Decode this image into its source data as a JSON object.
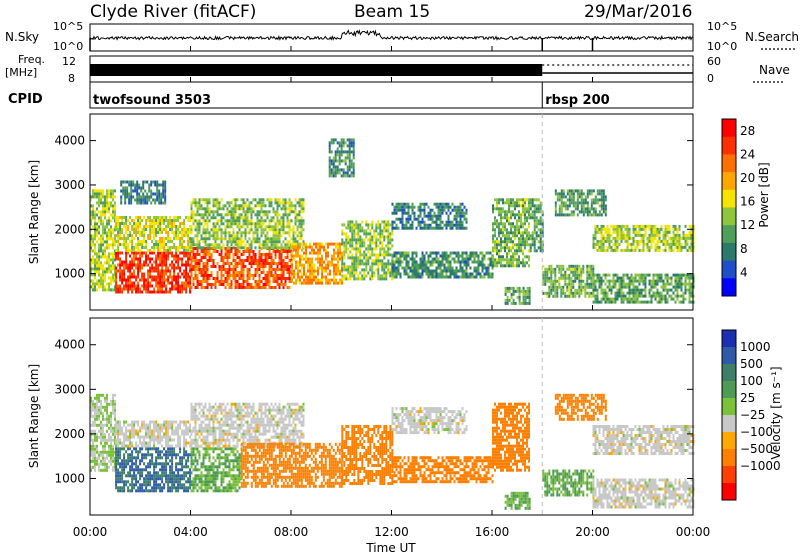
{
  "header": {
    "station": "Clyde River (fitACF)",
    "beam": "Beam 15",
    "date": "29/Mar/2016"
  },
  "strip_labels": {
    "nsky": "N.Sky",
    "freq_line1": "Freq.",
    "freq_line2": "[MHz]",
    "cpid": "CPID",
    "nsearch": "N.Search",
    "nave": "Nave",
    "nsky_tick_hi": "10^5",
    "nsky_tick_lo": "10^0",
    "nsearch_tick_hi": "10^5",
    "nsearch_tick_lo": "10^0",
    "freq_tick_hi": "12",
    "freq_tick_lo": "8",
    "nave_tick_hi": "60",
    "nave_tick_lo": "0"
  },
  "colors": {
    "power_scale": [
      "#0000ff",
      "#1f4fc8",
      "#2c7a6a",
      "#4f9e5b",
      "#8fc43d",
      "#f5e400",
      "#ffa500",
      "#ff7000",
      "#ff3000",
      "#ff0000"
    ],
    "velocity_scale": [
      "#1c2fb0",
      "#2f5aa8",
      "#3f7f6a",
      "#4f9b55",
      "#79c23a",
      "#c8c8c8",
      "#ffa800",
      "#ff8000",
      "#ff4000",
      "#ff0000"
    ]
  },
  "chart_data": [
    {
      "type": "table",
      "name": "cpid-timeline",
      "entries": [
        {
          "label": "twofsound 3503",
          "start_ut": 0.0,
          "end_ut": 18.0
        },
        {
          "label": "rbsp 200",
          "start_ut": 18.0,
          "end_ut": 24.0
        }
      ]
    },
    {
      "type": "heatmap",
      "title": "",
      "xlabel": "Time UT",
      "ylabel": "Slant Range [km]",
      "xlim": [
        0,
        24
      ],
      "ylim": [
        180,
        4600
      ],
      "xticks": [
        "00:00",
        "04:00",
        "08:00",
        "12:00",
        "16:00",
        "20:00",
        "00:00"
      ],
      "yticks": [
        "1000",
        "2000",
        "3000",
        "4000"
      ],
      "colorbar": {
        "label": "Power [dB]",
        "ticks": [
          "4",
          "8",
          "12",
          "16",
          "20",
          "24",
          "28"
        ],
        "range": [
          0,
          30
        ]
      },
      "regions": [
        {
          "t": [
            0.0,
            1.0
          ],
          "r": [
            650,
            2900
          ],
          "v": 14
        },
        {
          "t": [
            1.0,
            4.0
          ],
          "r": [
            600,
            1500
          ],
          "v": 26
        },
        {
          "t": [
            1.0,
            4.0
          ],
          "r": [
            1500,
            2300
          ],
          "v": 15
        },
        {
          "t": [
            1.2,
            3.0
          ],
          "r": [
            2600,
            3100
          ],
          "v": 8
        },
        {
          "t": [
            4.0,
            8.0
          ],
          "r": [
            700,
            1600
          ],
          "v": 24
        },
        {
          "t": [
            4.0,
            8.5
          ],
          "r": [
            1600,
            2700
          ],
          "v": 13
        },
        {
          "t": [
            8.0,
            10.0
          ],
          "r": [
            800,
            1700
          ],
          "v": 20
        },
        {
          "t": [
            9.5,
            10.5
          ],
          "r": [
            3200,
            4050
          ],
          "v": 9
        },
        {
          "t": [
            10.0,
            12.0
          ],
          "r": [
            900,
            2200
          ],
          "v": 13
        },
        {
          "t": [
            12.0,
            16.0
          ],
          "r": [
            900,
            1500
          ],
          "v": 9
        },
        {
          "t": [
            12.0,
            15.0
          ],
          "r": [
            2000,
            2600
          ],
          "v": 8
        },
        {
          "t": [
            16.0,
            17.5
          ],
          "r": [
            1200,
            2700
          ],
          "v": 12
        },
        {
          "t": [
            16.5,
            17.5
          ],
          "r": [
            300,
            700
          ],
          "v": 11
        },
        {
          "t": [
            17.5,
            18.0
          ],
          "r": [
            1500,
            2700
          ],
          "v": 10
        },
        {
          "t": [
            18.0,
            20.0
          ],
          "r": [
            500,
            1200
          ],
          "v": 12
        },
        {
          "t": [
            18.5,
            20.5
          ],
          "r": [
            2300,
            2900
          ],
          "v": 10
        },
        {
          "t": [
            20.0,
            24.0
          ],
          "r": [
            1550,
            2100
          ],
          "v": 14
        },
        {
          "t": [
            20.0,
            24.0
          ],
          "r": [
            350,
            1000
          ],
          "v": 11
        }
      ]
    },
    {
      "type": "heatmap",
      "title": "",
      "xlabel": "Time UT",
      "ylabel": "Slant Range [km]",
      "xlim": [
        0,
        24
      ],
      "ylim": [
        180,
        4600
      ],
      "xticks": [
        "00:00",
        "04:00",
        "08:00",
        "12:00",
        "16:00",
        "20:00",
        "00:00"
      ],
      "yticks": [
        "1000",
        "2000",
        "3000",
        "4000"
      ],
      "colorbar": {
        "label": "Velocity [m s⁻¹]",
        "ticks": [
          "1000",
          "500",
          "100",
          "25",
          "−25",
          "−100",
          "−500",
          "−1000"
        ]
      },
      "regions": [
        {
          "t": [
            0.0,
            1.0
          ],
          "r": [
            1200,
            2900
          ],
          "v": 25
        },
        {
          "t": [
            1.0,
            4.0
          ],
          "r": [
            700,
            1700
          ],
          "v": 500
        },
        {
          "t": [
            1.0,
            4.0
          ],
          "r": [
            1700,
            2300
          ],
          "v": 0
        },
        {
          "t": [
            4.0,
            6.0
          ],
          "r": [
            700,
            1700
          ],
          "v": 100
        },
        {
          "t": [
            4.0,
            8.5
          ],
          "r": [
            1700,
            2700
          ],
          "v": 0
        },
        {
          "t": [
            6.0,
            10.0
          ],
          "r": [
            800,
            1800
          ],
          "v": -300
        },
        {
          "t": [
            10.0,
            12.0
          ],
          "r": [
            900,
            2200
          ],
          "v": -200
        },
        {
          "t": [
            12.0,
            16.0
          ],
          "r": [
            900,
            1500
          ],
          "v": -300
        },
        {
          "t": [
            12.0,
            15.0
          ],
          "r": [
            2000,
            2600
          ],
          "v": 0
        },
        {
          "t": [
            16.0,
            17.5
          ],
          "r": [
            1200,
            2700
          ],
          "v": -300
        },
        {
          "t": [
            16.5,
            17.5
          ],
          "r": [
            300,
            700
          ],
          "v": 100
        },
        {
          "t": [
            18.0,
            20.0
          ],
          "r": [
            600,
            1200
          ],
          "v": 100
        },
        {
          "t": [
            18.5,
            20.5
          ],
          "r": [
            2300,
            2900
          ],
          "v": -300
        },
        {
          "t": [
            20.0,
            24.0
          ],
          "r": [
            1550,
            2200
          ],
          "v": 0
        },
        {
          "t": [
            20.0,
            24.0
          ],
          "r": [
            350,
            1000
          ],
          "v": 0
        }
      ]
    }
  ]
}
